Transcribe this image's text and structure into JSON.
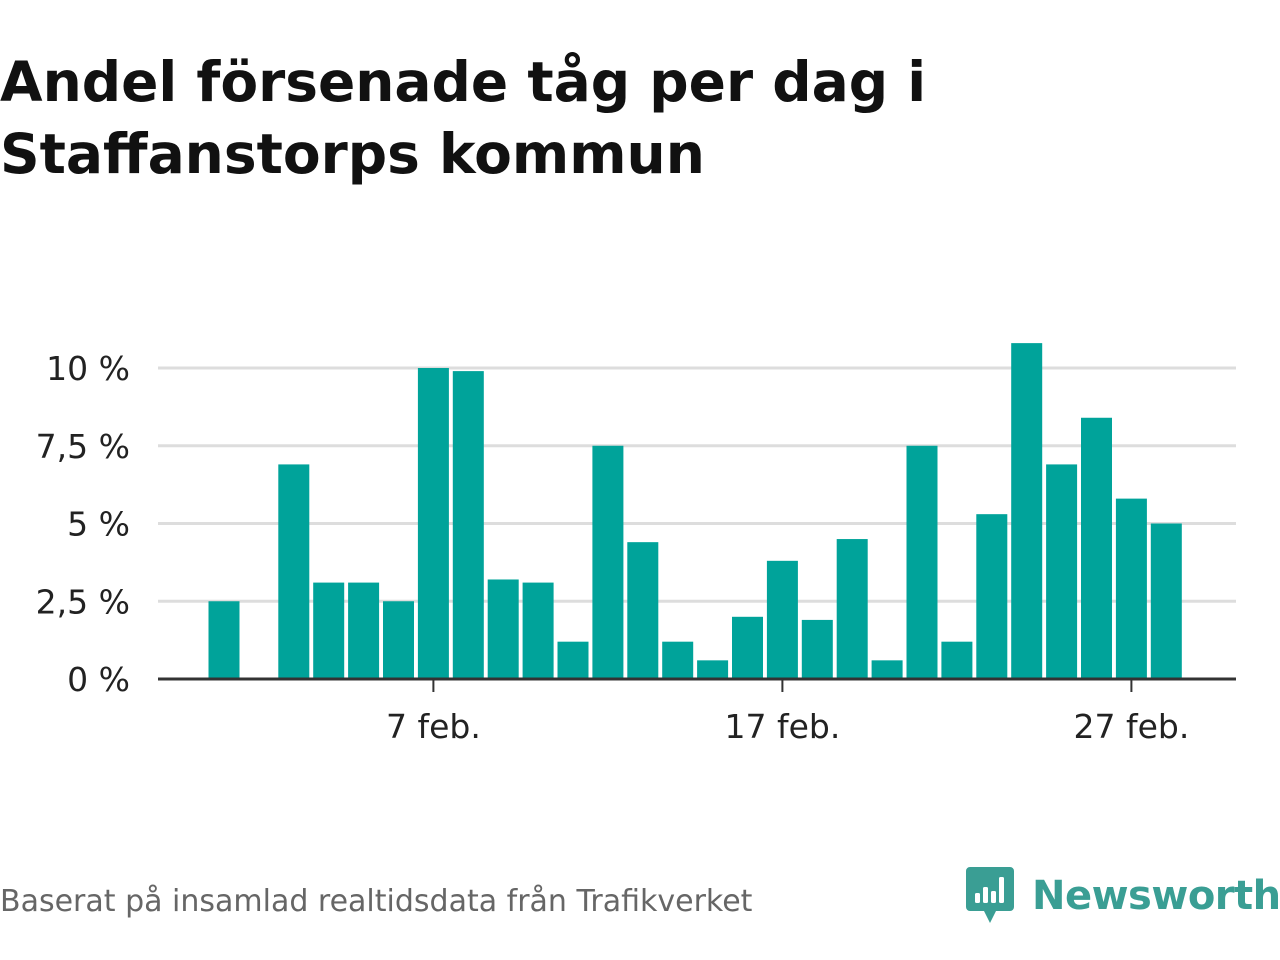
{
  "title_lines": [
    "Andel försenade tåg per dag i",
    "Staffanstorps kommun"
  ],
  "footer": {
    "source": "Baserat på insamlad realtidsdata från Trafikverket",
    "brand": "Newsworthy",
    "brand_icon": "newsworthy-logo-icon"
  },
  "colors": {
    "bar": "#00a39a",
    "grid": "#dddddd",
    "axis": "#333333",
    "brand": "#3a9e94"
  },
  "chart_data": {
    "type": "bar",
    "x": [
      "1 feb.",
      "2 feb.",
      "3 feb.",
      "4 feb.",
      "5 feb.",
      "6 feb.",
      "7 feb.",
      "8 feb.",
      "9 feb.",
      "10 feb.",
      "11 feb.",
      "12 feb.",
      "13 feb.",
      "14 feb.",
      "15 feb.",
      "16 feb.",
      "17 feb.",
      "18 feb.",
      "19 feb.",
      "20 feb.",
      "21 feb.",
      "22 feb.",
      "23 feb.",
      "24 feb.",
      "25 feb.",
      "26 feb.",
      "27 feb.",
      "28 feb."
    ],
    "values": [
      2.5,
      null,
      6.9,
      3.1,
      3.1,
      2.5,
      10.0,
      9.9,
      3.2,
      3.1,
      1.2,
      7.5,
      4.4,
      1.2,
      0.6,
      2.0,
      3.8,
      1.9,
      4.5,
      0.6,
      7.5,
      1.2,
      5.3,
      10.8,
      6.9,
      8.4,
      5.8,
      5.0
    ],
    "ylim": [
      0,
      10.8
    ],
    "yticks": [
      {
        "value": 0,
        "label": "0 %"
      },
      {
        "value": 2.5,
        "label": "2,5 %"
      },
      {
        "value": 5,
        "label": "5 %"
      },
      {
        "value": 7.5,
        "label": "7,5 %"
      },
      {
        "value": 10,
        "label": "10 %"
      }
    ],
    "xticks": [
      {
        "index": 6,
        "label": "7 feb."
      },
      {
        "index": 16,
        "label": "17 feb."
      },
      {
        "index": 26,
        "label": "27 feb."
      }
    ],
    "grid": true,
    "legend": "none"
  }
}
